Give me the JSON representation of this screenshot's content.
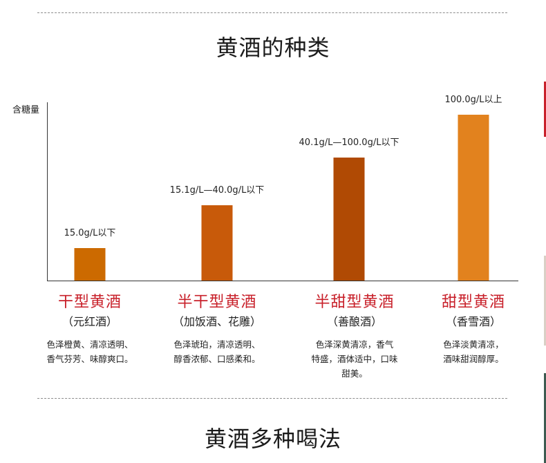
{
  "section_title": "黄酒的种类",
  "next_section_title": "黄酒多种喝法",
  "colors": {
    "accent_red": "#c8202a",
    "bars": [
      "#cc6a00",
      "#c85a0a",
      "#b04a04",
      "#e2821e"
    ]
  },
  "chart_data": {
    "type": "bar",
    "ylabel": "含糖量",
    "categories": [
      "干型黄酒",
      "半干型黄酒",
      "半甜型黄酒",
      "甜型黄酒"
    ],
    "values": [
      15.0,
      40.0,
      100.0,
      150.0
    ],
    "value_labels": [
      "15.0g/L以下",
      "15.1g/L—40.0g/L以下",
      "40.1g/L—100.0g/L以下",
      "100.0g/L以上"
    ],
    "grid": false
  },
  "types": [
    {
      "name": "干型黄酒",
      "alias": "（元红酒）",
      "desc_lines": [
        "色泽橙黄、清凉透明、",
        "香气芬芳、味醇爽口。"
      ]
    },
    {
      "name": "半干型黄酒",
      "alias": "（加饭酒、花雕）",
      "desc_lines": [
        "色泽琥珀，清凉透明、",
        "醇香浓郁、口感柔和。"
      ]
    },
    {
      "name": "半甜型黄酒",
      "alias": "（善酿酒）",
      "desc_lines": [
        "色泽深黄清凉，香气",
        "特盛，酒体适中，口味",
        "甜美。"
      ]
    },
    {
      "name": "甜型黄酒",
      "alias": "（香雪酒）",
      "desc_lines": [
        "色泽淡黄清凉，",
        "酒味甜润醇厚。"
      ]
    }
  ]
}
